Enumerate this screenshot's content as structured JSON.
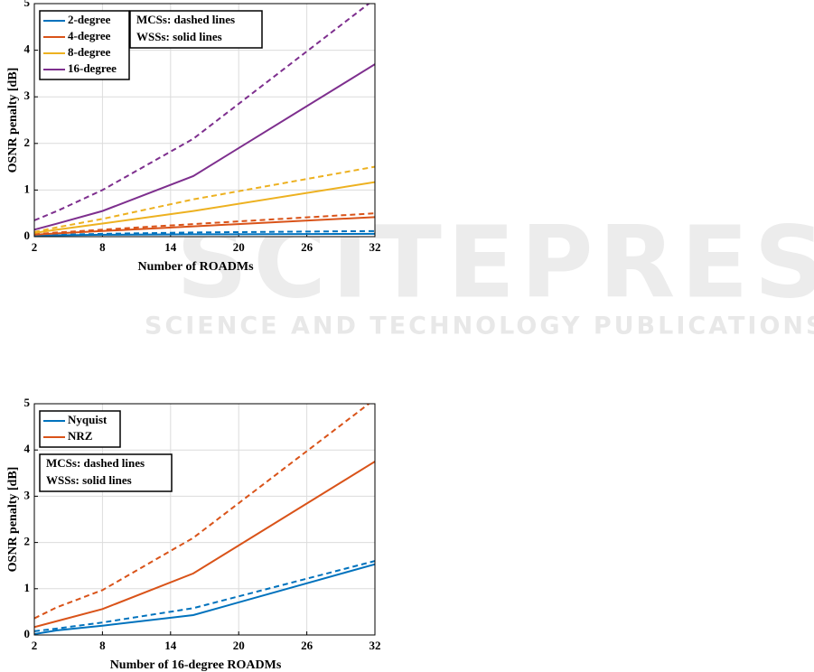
{
  "watermark": {
    "logo": "SCITEPRESS",
    "text": "SCIENCE AND TECHNOLOGY PUBLICATIONS"
  },
  "chart_data": [
    {
      "type": "line",
      "x_label": "Number of ROADMs",
      "y_label": "OSNR penalty [dB]",
      "x": [
        2,
        4,
        8,
        16,
        32
      ],
      "xlim": [
        2,
        32
      ],
      "xticks": [
        2,
        8,
        14,
        20,
        26,
        32
      ],
      "ylim": [
        0,
        5
      ],
      "yticks": [
        0,
        1,
        2,
        3,
        4,
        5
      ],
      "grid": true,
      "annotation": [
        "MCSs: dashed lines",
        "WSSs: solid lines"
      ],
      "series": [
        {
          "name": "2-degree",
          "color": "#0072bd",
          "values": [
            0.02,
            0.03,
            0.04,
            0.05,
            0.06
          ],
          "dashed_values": [
            0.03,
            0.04,
            0.06,
            0.09,
            0.12
          ]
        },
        {
          "name": "4-degree",
          "color": "#d95319",
          "values": [
            0.04,
            0.07,
            0.12,
            0.22,
            0.42
          ],
          "dashed_values": [
            0.05,
            0.09,
            0.15,
            0.27,
            0.5
          ]
        },
        {
          "name": "8-degree",
          "color": "#edb120",
          "values": [
            0.08,
            0.15,
            0.28,
            0.55,
            1.17
          ],
          "dashed_values": [
            0.1,
            0.2,
            0.38,
            0.8,
            1.5
          ]
        },
        {
          "name": "16-degree",
          "color": "#7e2f8e",
          "values": [
            0.15,
            0.28,
            0.55,
            1.3,
            3.7
          ],
          "dashed_values": [
            0.35,
            0.55,
            1.0,
            2.1,
            5.1
          ]
        }
      ]
    },
    {
      "type": "line",
      "x_label": "Number of 16-degree ROADMs",
      "y_label": "OSNR penalty [dB]",
      "x": [
        2,
        4,
        8,
        16,
        32
      ],
      "xlim": [
        2,
        32
      ],
      "xticks": [
        2,
        8,
        14,
        20,
        26,
        32
      ],
      "ylim": [
        0,
        5
      ],
      "yticks": [
        0,
        1,
        2,
        3,
        4,
        5
      ],
      "grid": true,
      "annotation": [
        "MCSs: dashed lines",
        "WSSs: solid lines"
      ],
      "series": [
        {
          "name": "Nyquist",
          "color": "#0072bd",
          "values": [
            0.02,
            0.1,
            0.2,
            0.43,
            1.53
          ],
          "dashed_values": [
            0.08,
            0.14,
            0.27,
            0.58,
            1.6
          ]
        },
        {
          "name": "NRZ",
          "color": "#d95319",
          "values": [
            0.17,
            0.3,
            0.56,
            1.33,
            3.75
          ],
          "dashed_values": [
            0.36,
            0.6,
            0.97,
            2.1,
            5.1
          ]
        }
      ]
    }
  ]
}
